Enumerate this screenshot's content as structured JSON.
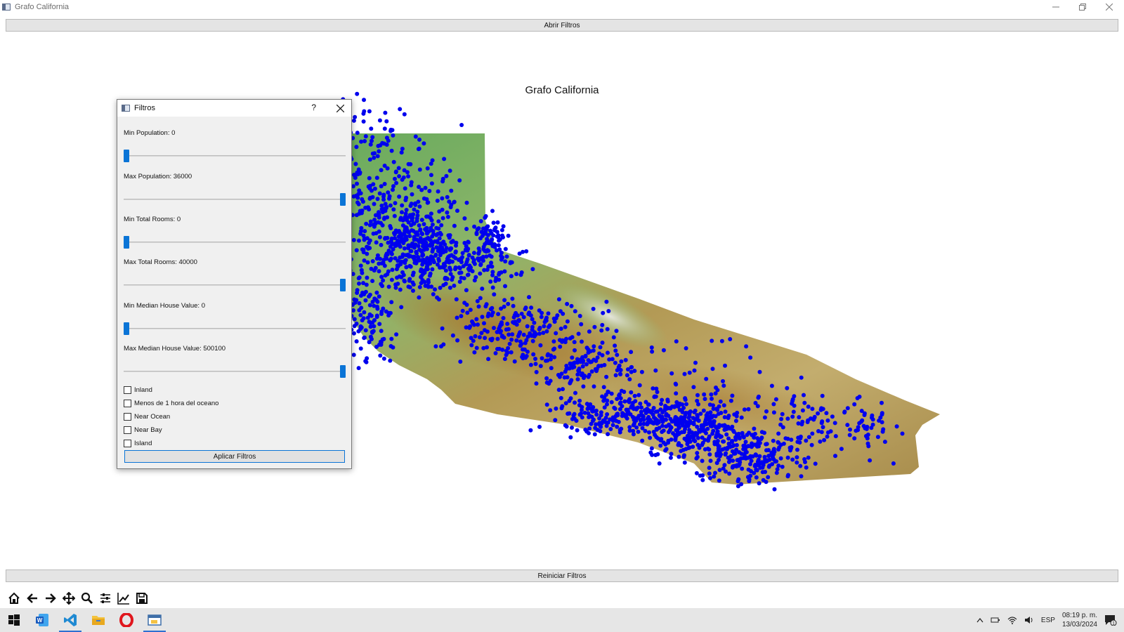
{
  "window": {
    "title": "Grafo California"
  },
  "buttons": {
    "open_filters": "Abrir Filtros",
    "reset_filters": "Reiniciar Filtros"
  },
  "plot": {
    "title": "Grafo California"
  },
  "dialog": {
    "title": "Filtros",
    "help": "?",
    "sliders": [
      {
        "label": "Min Population: 0",
        "value": 0,
        "min": 0,
        "max": 36000
      },
      {
        "label": "Max Population: 36000",
        "value": 36000,
        "min": 0,
        "max": 36000
      },
      {
        "label": "Min Total Rooms: 0",
        "value": 0,
        "min": 0,
        "max": 40000
      },
      {
        "label": "Max Total Rooms: 40000",
        "value": 40000,
        "min": 0,
        "max": 40000
      },
      {
        "label": "Min Median House Value: 0",
        "value": 0,
        "min": 0,
        "max": 500100
      },
      {
        "label": "Max Median House Value: 500100",
        "value": 500100,
        "min": 0,
        "max": 500100
      }
    ],
    "checkboxes": [
      {
        "label": "Inland",
        "checked": false
      },
      {
        "label": "Menos de 1 hora del oceano",
        "checked": false
      },
      {
        "label": "Near Ocean",
        "checked": false
      },
      {
        "label": "Near Bay",
        "checked": false
      },
      {
        "label": "Island",
        "checked": false
      }
    ],
    "apply": "Aplicar Filtros"
  },
  "toolbar": {
    "tools": [
      "home-icon",
      "back-arrow-icon",
      "forward-arrow-icon",
      "pan-icon",
      "zoom-icon",
      "configure-subplots-icon",
      "edit-axis-icon",
      "save-icon"
    ]
  },
  "taskbar": {
    "apps": [
      "windows-start-icon",
      "word-icon",
      "vscode-icon",
      "file-explorer-icon",
      "opera-icon",
      "python-app-icon"
    ],
    "language": "ESP",
    "time": "08:19 p. m.",
    "date": "13/03/2024",
    "notifications": "1"
  },
  "colors": {
    "points": "#0000ee",
    "accent": "#0a74d6"
  }
}
